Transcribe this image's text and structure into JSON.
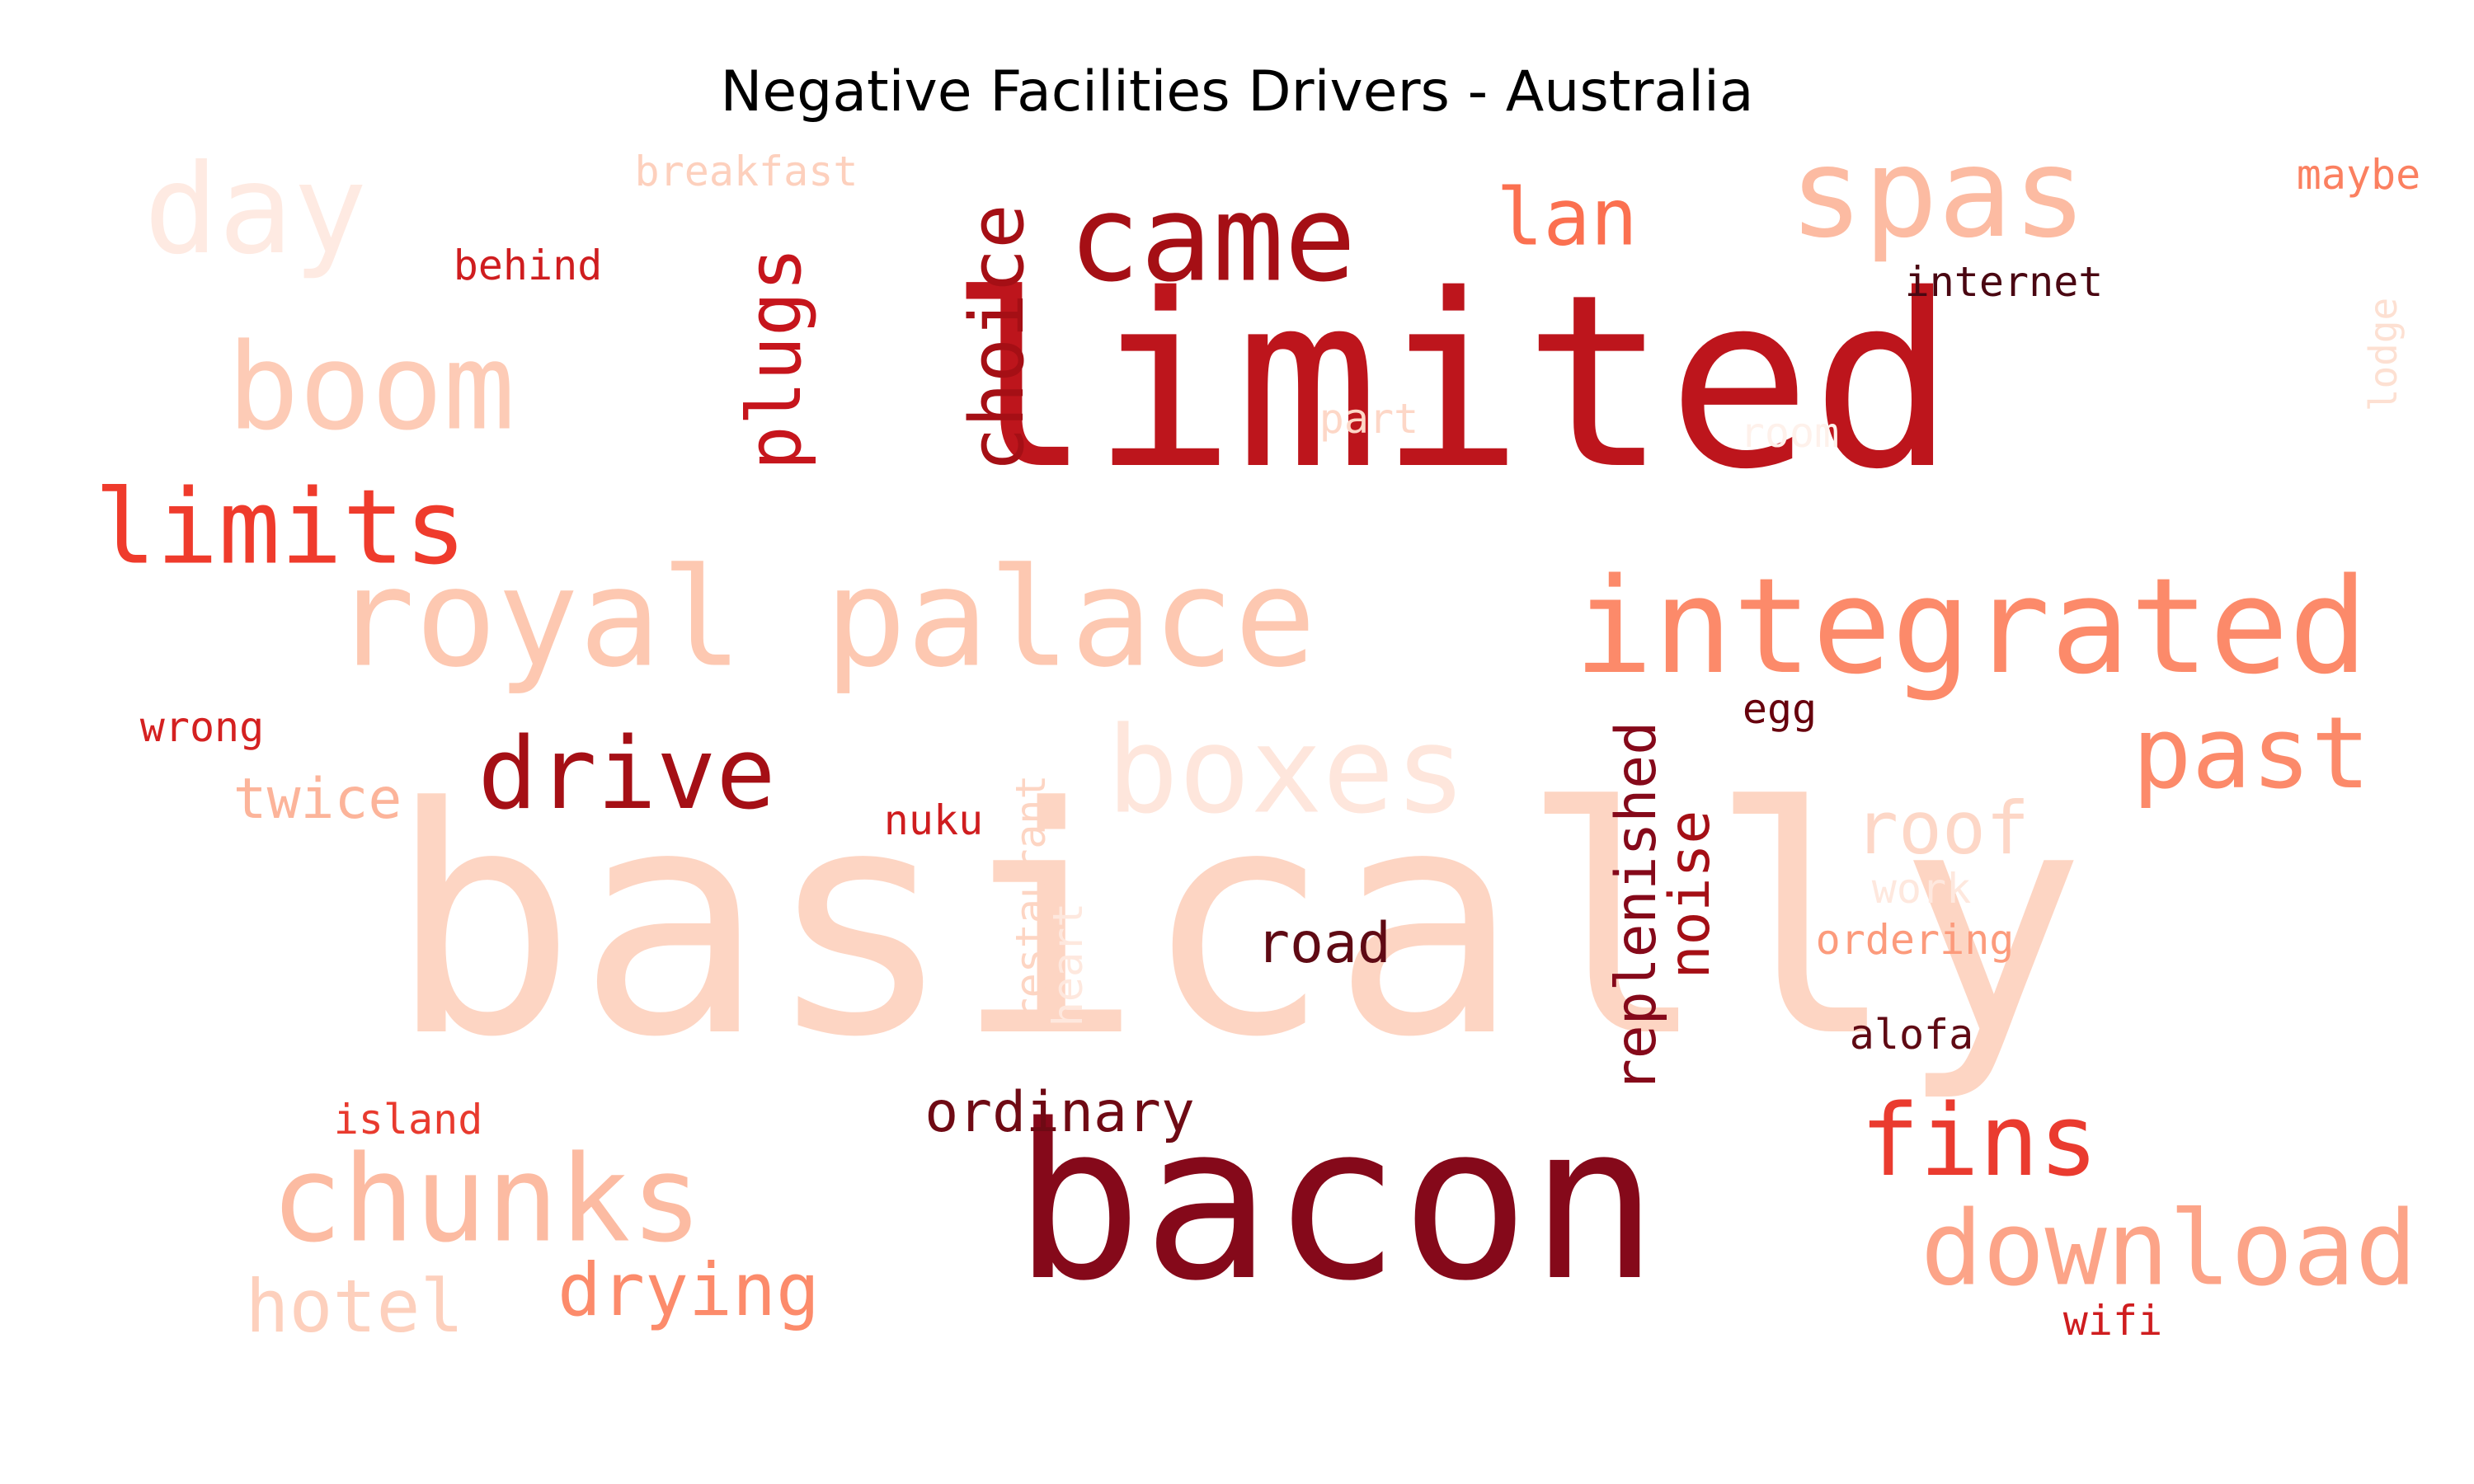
{
  "title": "Negative Facilities Drivers - Australia",
  "words": [
    {
      "text": "basically",
      "color": "#fdd5c3"
    },
    {
      "text": "limited",
      "color": "#bd151c"
    },
    {
      "text": "bacon",
      "color": "#85091a"
    },
    {
      "text": "royal palace",
      "color": "#fdc8b1"
    },
    {
      "text": "integrated",
      "color": "#fc8a6a"
    },
    {
      "text": "spas",
      "color": "#fcbba2"
    },
    {
      "text": "boxes",
      "color": "#fee6dc"
    },
    {
      "text": "came",
      "color": "#a50f15"
    },
    {
      "text": "day",
      "color": "#feeae2"
    },
    {
      "text": "boom",
      "color": "#fdcbb6"
    },
    {
      "text": "limits",
      "color": "#ef3b2c"
    },
    {
      "text": "drive",
      "color": "#a50f15"
    },
    {
      "text": "past",
      "color": "#fc8a6a"
    },
    {
      "text": "chunks",
      "color": "#fcbba2"
    },
    {
      "text": "download",
      "color": "#fca488"
    },
    {
      "text": "fins",
      "color": "#ea3b2f"
    },
    {
      "text": "plugs",
      "color": "#c6151c"
    },
    {
      "text": "choice",
      "color": "#a50f15"
    },
    {
      "text": "lan",
      "color": "#fb7050"
    },
    {
      "text": "hotel",
      "color": "#fdd0bd"
    },
    {
      "text": "drying",
      "color": "#fc8b6b"
    },
    {
      "text": "ordinary",
      "color": "#6f0a14"
    },
    {
      "text": "roof",
      "color": "#fdd7c7"
    },
    {
      "text": "road",
      "color": "#5f0a14"
    },
    {
      "text": "noise",
      "color": "#a50f15"
    },
    {
      "text": "replenished",
      "color": "#85091a"
    },
    {
      "text": "twice",
      "color": "#fcb49a"
    },
    {
      "text": "restaurant",
      "color": "#fdd5c3"
    },
    {
      "text": "heart",
      "color": "#fee8de"
    },
    {
      "text": "breakfast",
      "color": "#fdd0bd"
    },
    {
      "text": "behind",
      "color": "#cf1d1f"
    },
    {
      "text": "internet",
      "color": "#4a0712"
    },
    {
      "text": "maybe",
      "color": "#fb8060"
    },
    {
      "text": "lodge",
      "color": "#fde0d2"
    },
    {
      "text": "part",
      "color": "#fdd7c7"
    },
    {
      "text": "room",
      "color": "#fef1eb"
    },
    {
      "text": "egg",
      "color": "#67000d"
    },
    {
      "text": "wrong",
      "color": "#d42121"
    },
    {
      "text": "nuku",
      "color": "#cf1d1f"
    },
    {
      "text": "work",
      "color": "#fee8de"
    },
    {
      "text": "ordering",
      "color": "#fc9b7c"
    },
    {
      "text": "alofa",
      "color": "#5f0a14"
    },
    {
      "text": "island",
      "color": "#e83a2e"
    },
    {
      "text": "wifi",
      "color": "#cf1d1f"
    }
  ]
}
